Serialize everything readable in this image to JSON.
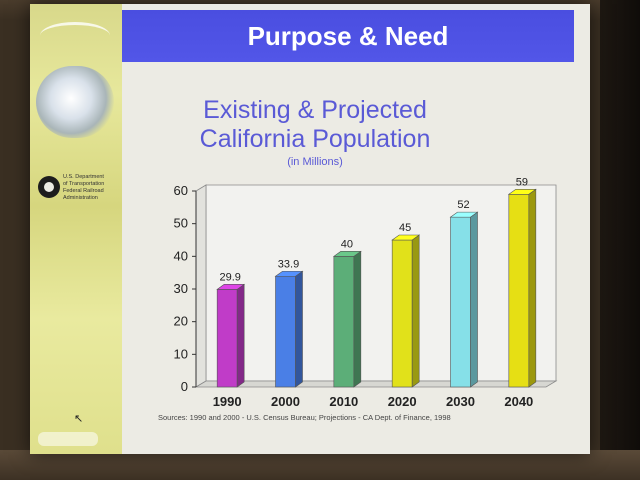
{
  "slide": {
    "title": "Purpose & Need",
    "agency_lines": [
      "U.S. Department",
      "of Transportation",
      "Federal Railroad",
      "Administration"
    ],
    "source_note": "Sources: 1990 and 2000 - U.S. Census Bureau; Projections - CA Dept. of Finance, 1998"
  },
  "colors": {
    "title_bar": "#4b4fe3",
    "title_text": "#ffffff",
    "chart_text": "#5a5ad6"
  },
  "chart_data": {
    "type": "bar",
    "title_lines": [
      "Existing & Projected",
      "California Population"
    ],
    "subtitle": "(in Millions)",
    "categories": [
      "1990",
      "2000",
      "2010",
      "2020",
      "2030",
      "2040"
    ],
    "values": [
      29.9,
      33.9,
      40,
      45,
      52,
      59
    ],
    "value_labels": [
      "29.9",
      "33.9",
      "40",
      "45",
      "52",
      "59"
    ],
    "bar_colors": [
      "#c03cc8",
      "#4a7fe6",
      "#5cae78",
      "#e1e11a",
      "#86e0e8",
      "#e6df14"
    ],
    "yticks": [
      "0",
      "10",
      "20",
      "30",
      "40",
      "50",
      "60"
    ],
    "ylim": [
      0,
      60
    ],
    "grid": false,
    "legend": false
  }
}
